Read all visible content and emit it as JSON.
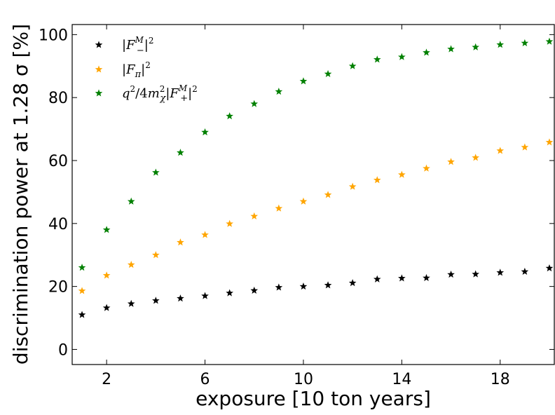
{
  "chart_data": {
    "type": "scatter",
    "xlabel": "exposure [10 ton years]",
    "ylabel": "discrimination power at 1.28 σ [%]",
    "xlim": [
      0.6,
      20.2
    ],
    "ylim": [
      -4.8,
      103.2
    ],
    "xticks": [
      2,
      6,
      10,
      14,
      18
    ],
    "yticks": [
      0,
      20,
      40,
      60,
      80,
      100
    ],
    "marker": "star",
    "legend_position": "upper-left",
    "x": [
      1,
      2,
      3,
      4,
      5,
      6,
      7,
      8,
      9,
      10,
      11,
      12,
      13,
      14,
      15,
      16,
      17,
      18,
      19,
      20
    ],
    "series": [
      {
        "name": "|F^M_−|^2",
        "color": "#000000",
        "values": [
          11.0,
          13.2,
          14.5,
          15.5,
          16.2,
          17.0,
          17.9,
          18.7,
          19.7,
          20.0,
          20.4,
          21.1,
          22.3,
          22.6,
          22.7,
          23.8,
          23.9,
          24.4,
          24.7,
          25.8
        ]
      },
      {
        "name": "|F_π|^2",
        "color": "#ffa500",
        "values": [
          18.6,
          23.5,
          26.9,
          30.0,
          34.0,
          36.4,
          39.9,
          42.3,
          44.8,
          47.0,
          49.1,
          51.7,
          53.8,
          55.5,
          57.5,
          59.6,
          60.9,
          63.1,
          64.2,
          65.8
        ]
      },
      {
        "name": "q^2/4m_χ^2|F^M_+|^2",
        "color": "#008000",
        "values": [
          26.0,
          38.0,
          47.0,
          56.2,
          62.5,
          69.0,
          74.1,
          78.0,
          81.9,
          85.2,
          87.5,
          90.0,
          92.1,
          92.9,
          94.3,
          95.4,
          96.0,
          96.8,
          97.3,
          97.8
        ]
      }
    ]
  }
}
